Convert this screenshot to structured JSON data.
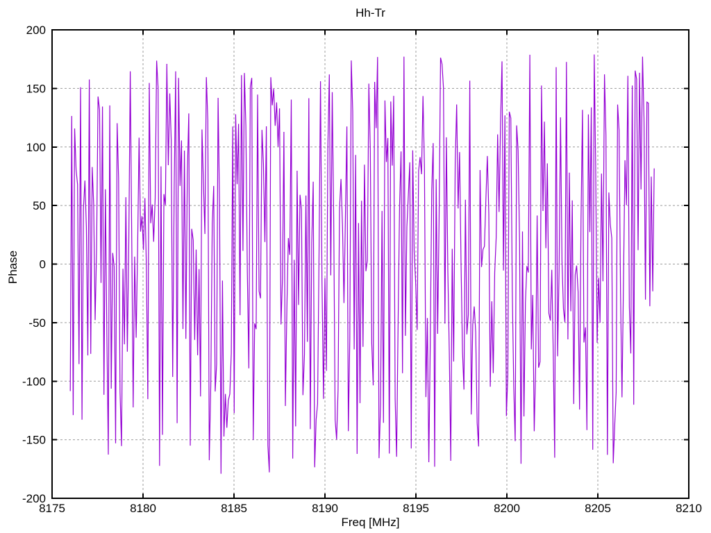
{
  "page": {
    "background": "#ffffff",
    "text_color": "#000000"
  },
  "chart_data": {
    "type": "line",
    "title": "Hh-Tr",
    "xlabel": "Freq [MHz]",
    "ylabel": "Phase",
    "xlim": [
      8175,
      8210
    ],
    "ylim": [
      -200,
      200
    ],
    "xticks": [
      8175,
      8180,
      8185,
      8190,
      8195,
      8200,
      8205,
      8210
    ],
    "yticks": [
      -200,
      -150,
      -100,
      -50,
      0,
      50,
      100,
      150,
      200
    ],
    "grid": true,
    "grid_color": "#9b9b9b",
    "grid_dash": "3,3",
    "border_color": "#000000",
    "legend": "none",
    "series": [
      {
        "name": "Hh-Tr",
        "style": "lines",
        "color": "#9400d3",
        "x_start": 8176.0,
        "x_end": 8208.1,
        "n_points": 400,
        "y_min": -180,
        "y_max": 180,
        "distribution": "uniform-wrapped-phase-noise",
        "seed": 9
      }
    ]
  }
}
